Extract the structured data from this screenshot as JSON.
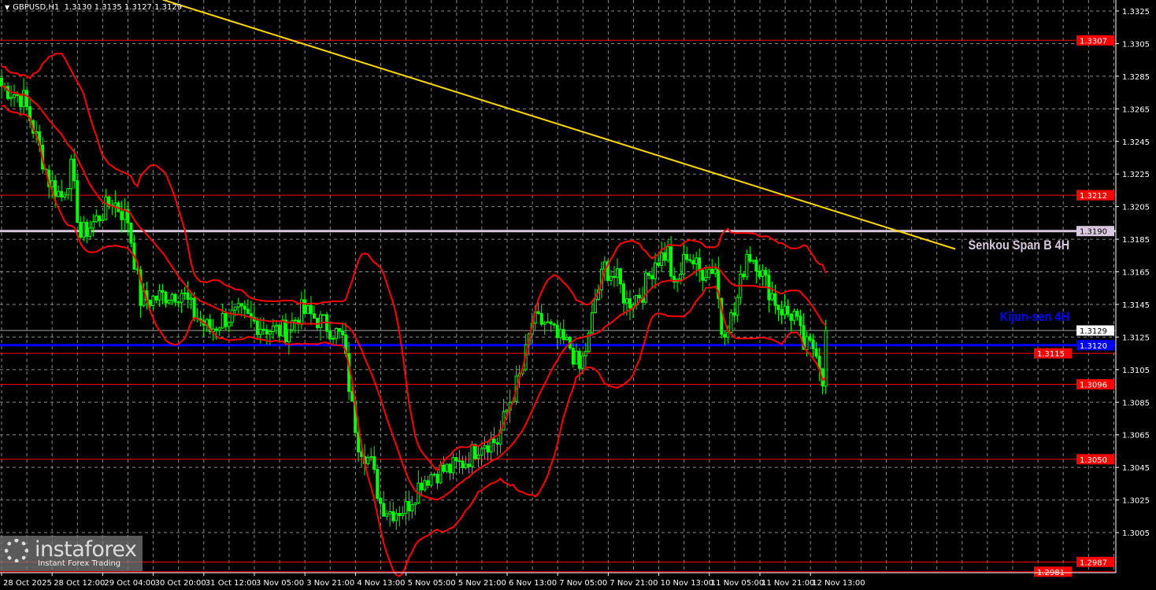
{
  "header": {
    "symbol": "GBPUSD,H1",
    "ohlc": "1.3130 1.3135 1.3127 1.3129"
  },
  "watermark": {
    "logo": "instaforex",
    "tagline": "Instant Forex Trading"
  },
  "colors": {
    "background": "#000000",
    "candle": "#00ff00",
    "bands": "#ff0000",
    "trendline": "#ffd700",
    "senkou": "#d8c8e0",
    "kijun": "#0000ff",
    "level": "#ff0000",
    "grid": "#8a8a8a",
    "current": "#a0a0a0"
  },
  "chart_data": {
    "type": "candlestick",
    "title": "GBPUSD,H1",
    "ylim": [
      1.2975,
      1.3331
    ],
    "y_ticks": [
      "1.3325",
      "1.3305",
      "1.3285",
      "1.3265",
      "1.3245",
      "1.3225",
      "1.3205",
      "1.3185",
      "1.3165",
      "1.3145",
      "1.3125",
      "1.3105",
      "1.3085",
      "1.3065",
      "1.3045",
      "1.3025",
      "1.3005"
    ],
    "x_ticks": [
      "28 Oct 2025",
      "28 Oct 12:00",
      "29 Oct 04:00",
      "30 Oct 20:00",
      "31 Oct 12:00",
      "3 Nov 05:00",
      "3 Nov 21:00",
      "4 Nov 13:00",
      "5 Nov 05:00",
      "5 Nov 21:00",
      "6 Nov 13:00",
      "7 Nov 05:00",
      "7 Nov 21:00",
      "10 Nov 13:00",
      "11 Nov 05:00",
      "11 Nov 21:00",
      "12 Nov 13:00"
    ],
    "grid": true,
    "close_path": [
      [
        0,
        1.3279
      ],
      [
        7,
        1.3271
      ],
      [
        11,
        1.3247
      ],
      [
        15,
        1.3221
      ],
      [
        19,
        1.3211
      ],
      [
        22,
        1.3228
      ],
      [
        25,
        1.3187
      ],
      [
        30,
        1.3197
      ],
      [
        35,
        1.3209
      ],
      [
        40,
        1.3197
      ],
      [
        44,
        1.3148
      ],
      [
        47,
        1.3148
      ],
      [
        52,
        1.3151
      ],
      [
        57,
        1.3153
      ],
      [
        61,
        1.3139
      ],
      [
        66,
        1.3129
      ],
      [
        70,
        1.3136
      ],
      [
        75,
        1.3139
      ],
      [
        80,
        1.3134
      ],
      [
        86,
        1.3129
      ],
      [
        90,
        1.3129
      ],
      [
        95,
        1.3141
      ],
      [
        100,
        1.3136
      ],
      [
        105,
        1.3129
      ],
      [
        108,
        1.3124
      ],
      [
        111,
        1.3081
      ],
      [
        113,
        1.3061
      ],
      [
        117,
        1.3047
      ],
      [
        120,
        1.3023
      ],
      [
        123,
        1.3018
      ],
      [
        128,
        1.302
      ],
      [
        133,
        1.3037
      ],
      [
        137,
        1.3042
      ],
      [
        142,
        1.3044
      ],
      [
        147,
        1.3049
      ],
      [
        152,
        1.3061
      ],
      [
        157,
        1.3061
      ],
      [
        161,
        1.3086
      ],
      [
        165,
        1.3105
      ],
      [
        168,
        1.3134
      ],
      [
        172,
        1.3134
      ],
      [
        176,
        1.3124
      ],
      [
        180,
        1.3119
      ],
      [
        183,
        1.3105
      ],
      [
        186,
        1.3124
      ],
      [
        188,
        1.3148
      ],
      [
        191,
        1.3168
      ],
      [
        195,
        1.316
      ],
      [
        198,
        1.3146
      ],
      [
        203,
        1.3153
      ],
      [
        207,
        1.3172
      ],
      [
        211,
        1.3177
      ],
      [
        213,
        1.3153
      ],
      [
        217,
        1.3177
      ],
      [
        221,
        1.3165
      ],
      [
        226,
        1.3168
      ],
      [
        228,
        1.3129
      ],
      [
        232,
        1.3139
      ],
      [
        236,
        1.3177
      ],
      [
        239,
        1.3172
      ],
      [
        242,
        1.3158
      ],
      [
        246,
        1.3144
      ],
      [
        249,
        1.3139
      ],
      [
        251,
        1.3139
      ],
      [
        254,
        1.3119
      ],
      [
        258,
        1.3119
      ],
      [
        260,
        1.31
      ],
      [
        261,
        1.3129
      ]
    ],
    "bands": {
      "type": "bollinger",
      "period": 20,
      "deviations": 2
    },
    "trendline": [
      [
        51,
        1.3332
      ],
      [
        302,
        1.3179
      ]
    ],
    "levels": [
      {
        "price": "1.3307",
        "kind": "support-resistance"
      },
      {
        "price": "1.3212",
        "kind": "support-resistance"
      },
      {
        "price": "1.3190",
        "kind": "senkou",
        "label": "Senkou Span B 4H"
      },
      {
        "price": "1.3120",
        "kind": "kijun",
        "label": "Kijun-sen 4H"
      },
      {
        "price": "1.3115",
        "kind": "support-resistance"
      },
      {
        "price": "1.3096",
        "kind": "support-resistance"
      },
      {
        "price": "1.3050",
        "kind": "support-resistance"
      },
      {
        "price": "1.2987",
        "kind": "support-resistance"
      },
      {
        "price": "1.2981",
        "kind": "support-resistance"
      }
    ],
    "current_price": "1.3129"
  }
}
